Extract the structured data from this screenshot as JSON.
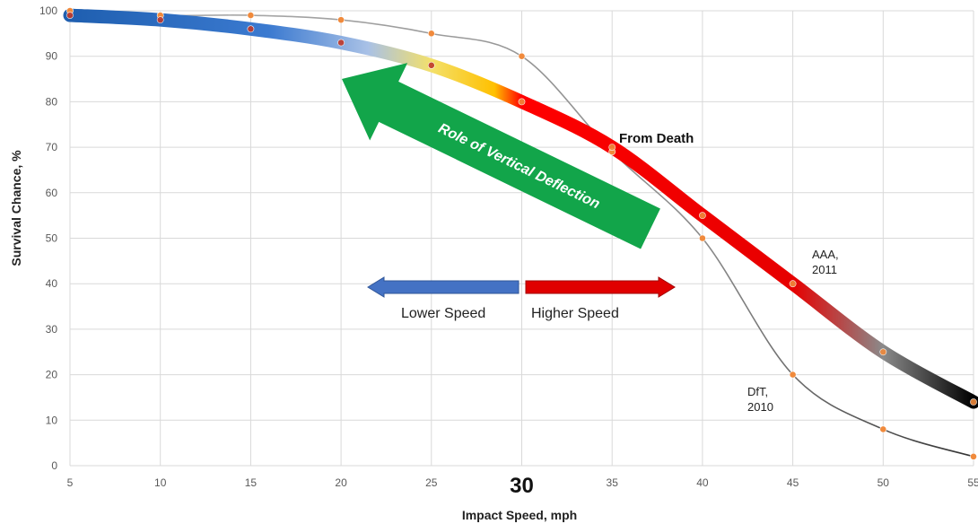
{
  "chart_data": {
    "type": "line",
    "xlabel": "Impact Speed, mph",
    "ylabel": "Survival Chance, %",
    "xlim": [
      5,
      55
    ],
    "ylim": [
      0,
      100
    ],
    "x_ticks": [
      "5",
      "10",
      "15",
      "20",
      "25",
      "30",
      "35",
      "40",
      "45",
      "50",
      "55"
    ],
    "y_ticks": [
      "0",
      "10",
      "20",
      "30",
      "40",
      "50",
      "60",
      "70",
      "80",
      "90",
      "100"
    ],
    "grid": true,
    "highlight_tick": "30",
    "series": [
      {
        "name": "AAA, 2011",
        "x": [
          5,
          10,
          15,
          20,
          25,
          30,
          35,
          40,
          45,
          50,
          55
        ],
        "y": [
          99,
          98,
          96,
          93,
          88,
          80,
          70,
          55,
          40,
          25,
          14
        ],
        "gradient_colors": [
          "#1f5fb0",
          "#3b7ad0",
          "#a9c1e6",
          "#f3e06a",
          "#ffc000",
          "#ff0000",
          "#e60000",
          "#8a8a8a",
          "#000000"
        ]
      },
      {
        "name": "DfT, 2010",
        "x": [
          5,
          10,
          15,
          20,
          25,
          30,
          35,
          40,
          45,
          50,
          55
        ],
        "y": [
          100,
          99,
          99,
          98,
          95,
          90,
          69,
          50,
          20,
          8,
          2
        ],
        "line_color": "#999999",
        "marker_color": "#f08a3c"
      }
    ],
    "annotations": {
      "from_death": "From Death",
      "aaa_label": [
        "AAA,",
        "2011"
      ],
      "dft_label": [
        "DfT,",
        "2010"
      ],
      "diagonal_arrow": "Role of Vertical Deflection",
      "lower_speed": "Lower Speed",
      "higher_speed": "Higher Speed"
    },
    "colors": {
      "grid": "#d9d9d9",
      "green_arrow": "#12a54a",
      "lower_arrow": "#4472c4",
      "higher_arrow": "#e00000"
    }
  }
}
